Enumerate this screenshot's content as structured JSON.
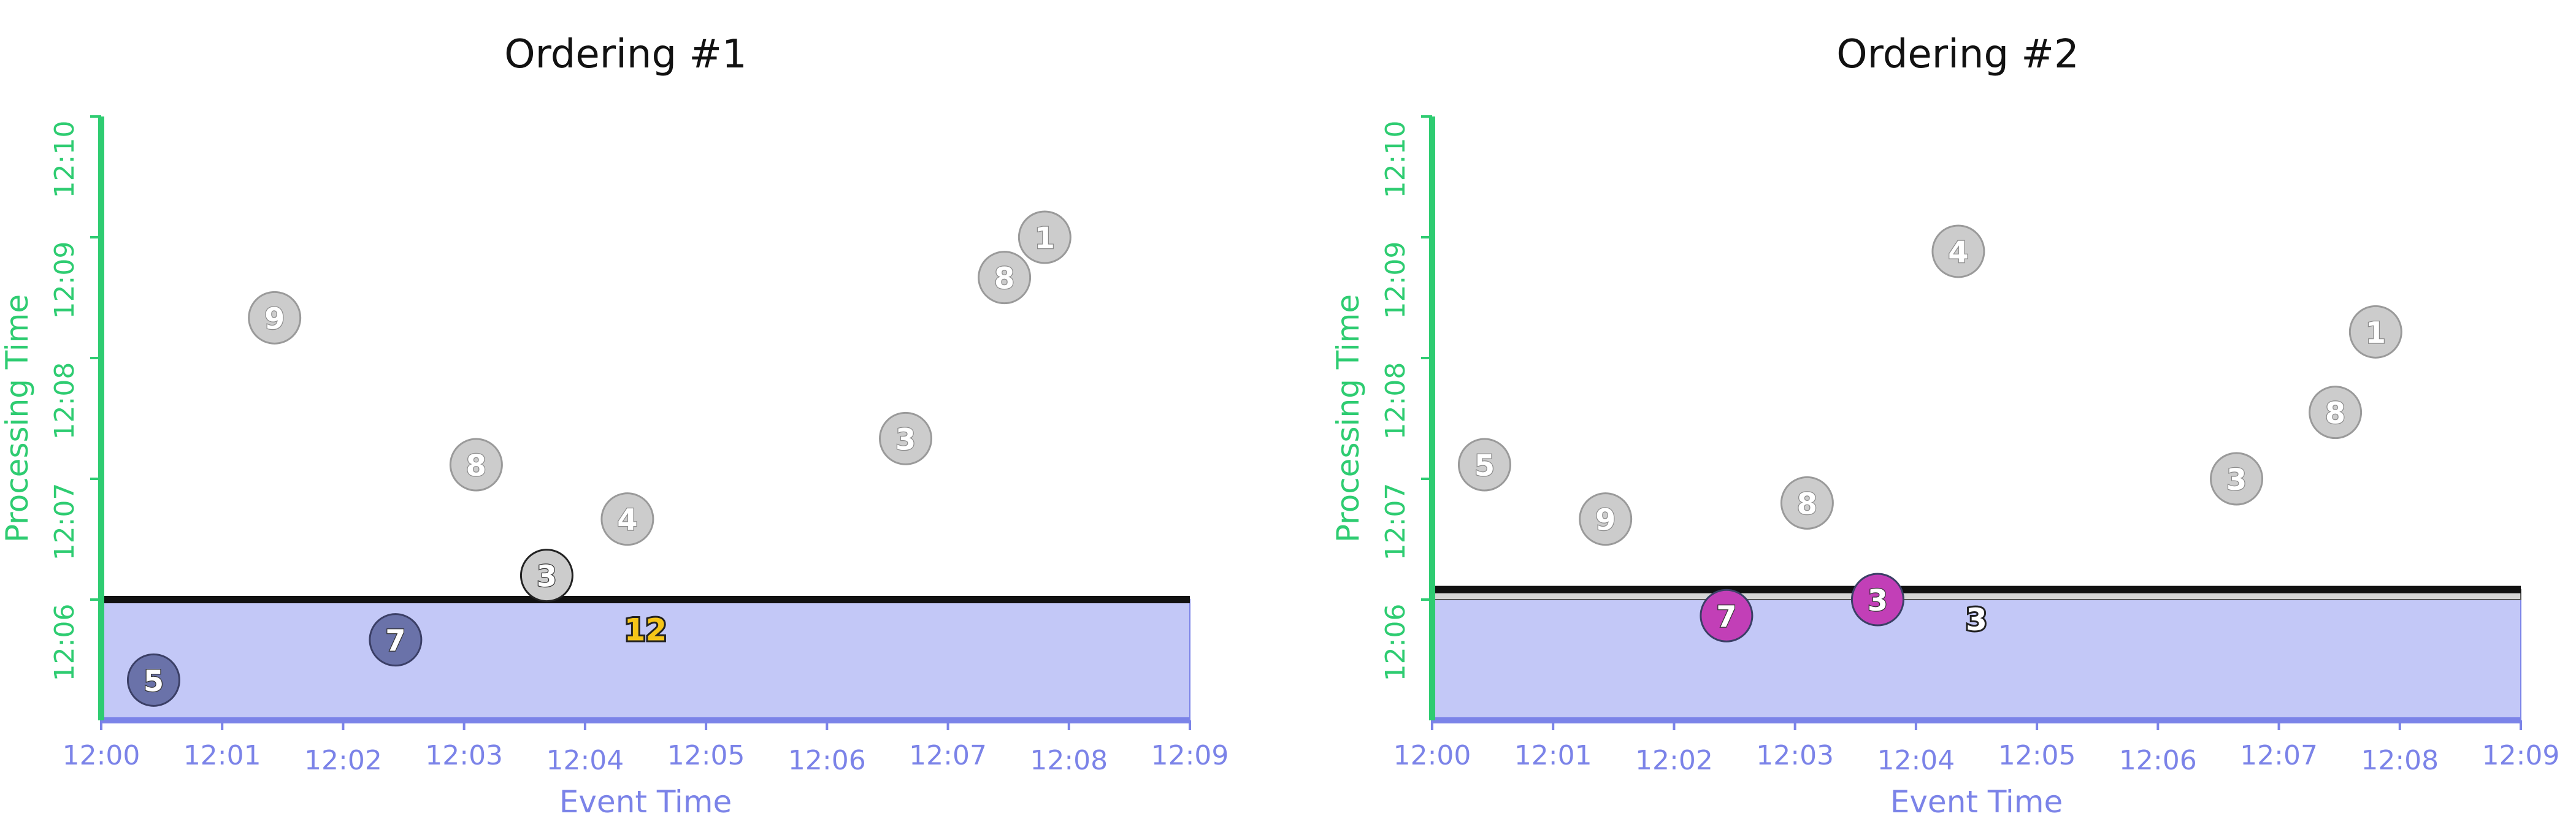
{
  "colors": {
    "x_axis": "#7b83e8",
    "y_axis": "#2ecc71",
    "region_fill": "#c3c8f7",
    "watermark_line": "#111111",
    "pending_dot": "#cccccc",
    "pending_dot_stroke": "#9a9a9a",
    "processed_dot_1": "#6a72a9",
    "processed_dot_2": "#c23fb7",
    "result_label": "#f5c518"
  },
  "chart_data": [
    {
      "type": "scatter",
      "title": "Ordering #1",
      "xlabel": "Event Time",
      "ylabel": "Processing Time",
      "x_ticks": [
        "12:00",
        "12:01",
        "12:02",
        "12:03",
        "12:04",
        "12:05",
        "12:06",
        "12:07",
        "12:08",
        "12:09"
      ],
      "y_ticks": [
        "12:06",
        "12:07",
        "12:08",
        "12:09",
        "12:10"
      ],
      "xlim": [
        "12:00",
        "12:09"
      ],
      "ylim": [
        "12:05",
        "12:10"
      ],
      "watermark_processing_time": "12:06:00",
      "processed_region_top": "12:06:00",
      "points": [
        {
          "label": "5",
          "event_time": "12:00:26",
          "processing_time": "12:05:20",
          "state": "processed"
        },
        {
          "label": "7",
          "event_time": "12:02:26",
          "processing_time": "12:05:40",
          "state": "processed"
        },
        {
          "label": "3",
          "event_time": "12:03:41",
          "processing_time": "12:06:12",
          "state": "boundary"
        },
        {
          "label": "9",
          "event_time": "12:01:26",
          "processing_time": "12:08:20",
          "state": "pending"
        },
        {
          "label": "8",
          "event_time": "12:03:06",
          "processing_time": "12:07:07",
          "state": "pending"
        },
        {
          "label": "4",
          "event_time": "12:04:21",
          "processing_time": "12:06:40",
          "state": "pending"
        },
        {
          "label": "3",
          "event_time": "12:06:39",
          "processing_time": "12:07:20",
          "state": "pending"
        },
        {
          "label": "8",
          "event_time": "12:07:28",
          "processing_time": "12:08:40",
          "state": "pending"
        },
        {
          "label": "1",
          "event_time": "12:07:48",
          "processing_time": "12:09:00",
          "state": "pending"
        }
      ],
      "results": [
        {
          "value": "12",
          "event_time": "12:04:30",
          "processing_time": "12:05:45"
        }
      ]
    },
    {
      "type": "scatter",
      "title": "Ordering #2",
      "xlabel": "Event Time",
      "ylabel": "Processing Time",
      "x_ticks": [
        "12:00",
        "12:01",
        "12:02",
        "12:03",
        "12:04",
        "12:05",
        "12:06",
        "12:07",
        "12:08",
        "12:09"
      ],
      "y_ticks": [
        "12:06",
        "12:07",
        "12:08",
        "12:09",
        "12:10"
      ],
      "xlim": [
        "12:00",
        "12:09"
      ],
      "ylim": [
        "12:05",
        "12:10"
      ],
      "watermark_processing_time": "12:06:05",
      "processed_region_top": "12:06:00",
      "points": [
        {
          "label": "7",
          "event_time": "12:02:26",
          "processing_time": "12:05:52",
          "state": "processed"
        },
        {
          "label": "3",
          "event_time": "12:03:41",
          "processing_time": "12:06:00",
          "state": "processed"
        },
        {
          "label": "5",
          "event_time": "12:00:26",
          "processing_time": "12:07:07",
          "state": "pending"
        },
        {
          "label": "9",
          "event_time": "12:01:26",
          "processing_time": "12:06:40",
          "state": "pending"
        },
        {
          "label": "8",
          "event_time": "12:03:06",
          "processing_time": "12:06:48",
          "state": "pending"
        },
        {
          "label": "4",
          "event_time": "12:04:21",
          "processing_time": "12:08:53",
          "state": "pending"
        },
        {
          "label": "3",
          "event_time": "12:06:39",
          "processing_time": "12:07:00",
          "state": "pending"
        },
        {
          "label": "8",
          "event_time": "12:07:28",
          "processing_time": "12:07:33",
          "state": "pending"
        },
        {
          "label": "1",
          "event_time": "12:07:48",
          "processing_time": "12:08:13",
          "state": "pending"
        }
      ],
      "results": [
        {
          "value": "3",
          "event_time": "12:04:30",
          "processing_time": "12:05:50"
        }
      ]
    }
  ]
}
